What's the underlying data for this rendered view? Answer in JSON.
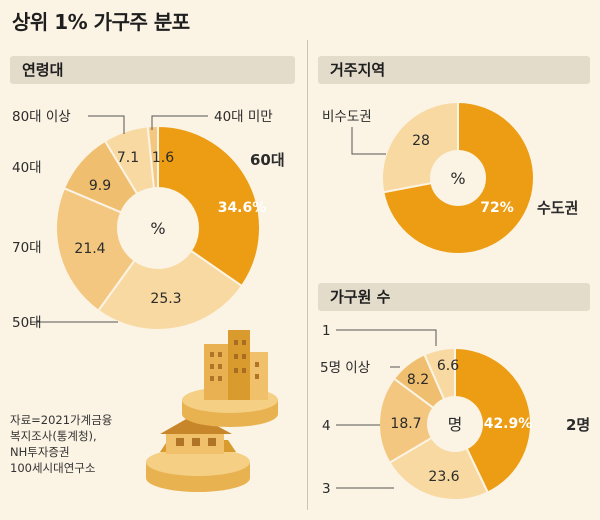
{
  "title": "상위 1% 가구주 분포",
  "source": [
    "자료=2021가계금융",
    "복지조사(통계청),",
    "NH투자증권",
    "100세시대연구소"
  ],
  "colors": {
    "orange": "#ed9d13",
    "light1": "#f8d9a2",
    "light2": "#f4c780",
    "light3": "#efbf6f",
    "bg": "#fbf3e4",
    "header": "#e4dccb"
  },
  "chart_data": [
    {
      "type": "pie",
      "title": "연령대",
      "center_label": "%",
      "categories": [
        "60대",
        "50대",
        "70대",
        "40대",
        "80대 이상",
        "40대 미만"
      ],
      "values": [
        34.6,
        25.3,
        21.4,
        9.9,
        7.1,
        1.6
      ],
      "value_labels": [
        "34.6%",
        "25.3",
        "21.4",
        "9.9",
        "7.1",
        "1.6"
      ]
    },
    {
      "type": "pie",
      "title": "거주지역",
      "center_label": "%",
      "categories": [
        "수도권",
        "비수도권"
      ],
      "values": [
        72,
        28
      ],
      "value_labels": [
        "72%",
        "28"
      ]
    },
    {
      "type": "pie",
      "title": "가구원 수",
      "center_label": "명",
      "categories": [
        "2명",
        "3",
        "4",
        "5명 이상",
        "1"
      ],
      "values": [
        42.9,
        23.6,
        18.7,
        8.2,
        6.6
      ],
      "value_labels": [
        "42.9%",
        "23.6",
        "18.7",
        "8.2",
        "6.6"
      ]
    }
  ]
}
